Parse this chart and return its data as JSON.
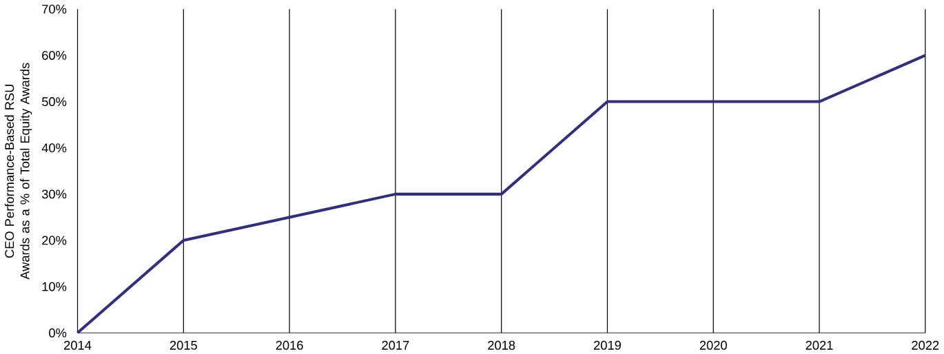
{
  "chart_data": {
    "type": "line",
    "ylabel": "CEO Performance-Based RSU Awards as a % of Total Equity Awards",
    "x": [
      2014,
      2015,
      2016,
      2017,
      2018,
      2019,
      2020,
      2021,
      2022
    ],
    "series": [
      {
        "color": "#2f2f7f",
        "values": [
          0,
          20,
          25,
          30,
          30,
          50,
          50,
          50,
          60
        ]
      }
    ],
    "xlim": [
      2014,
      2022
    ],
    "xticks": [
      2014,
      2015,
      2016,
      2017,
      2018,
      2019,
      2020,
      2021,
      2022
    ],
    "ylim": [
      0,
      70
    ],
    "yticks": [
      {
        "value": 0,
        "label": "0%"
      },
      {
        "value": 10,
        "label": "10%"
      },
      {
        "value": 20,
        "label": "20%"
      },
      {
        "value": 30,
        "label": "30%"
      },
      {
        "value": 40,
        "label": "40%"
      },
      {
        "value": 50,
        "label": "50%"
      },
      {
        "value": 60,
        "label": "60%"
      },
      {
        "value": 70,
        "label": "70%"
      }
    ],
    "grid": "x",
    "line_style": "solid",
    "marker": "none"
  }
}
